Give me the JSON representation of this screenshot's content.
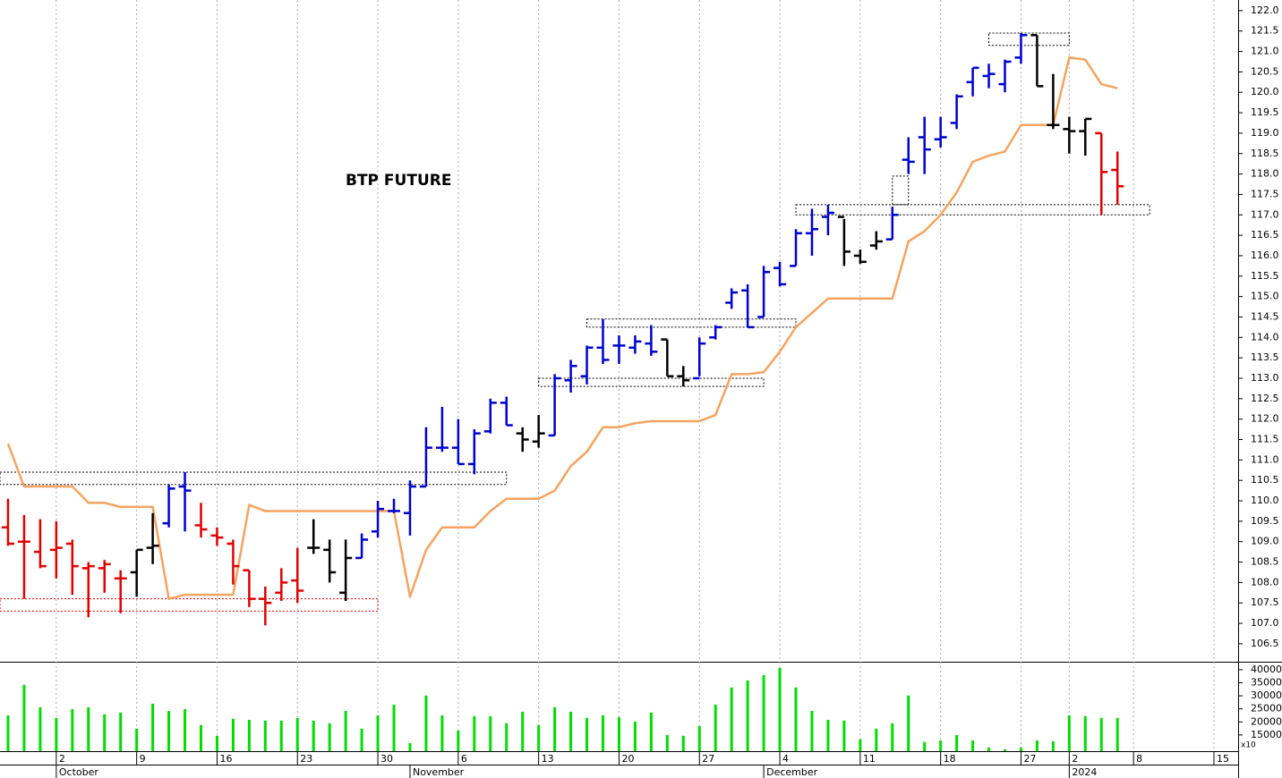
{
  "chart_data": {
    "type": "ohlc",
    "title": "BTP FUTURE",
    "categories": [
      null,
      null,
      null,
      "2",
      null,
      null,
      null,
      null,
      "9",
      null,
      null,
      null,
      null,
      "16",
      null,
      null,
      null,
      null,
      "23",
      null,
      null,
      null,
      null,
      "30",
      null,
      null,
      null,
      null,
      "6",
      null,
      null,
      null,
      null,
      "13",
      null,
      null,
      null,
      null,
      "20",
      null,
      null,
      null,
      null,
      "27",
      null,
      null,
      null,
      null,
      "4",
      null,
      null,
      null,
      null,
      "11",
      null,
      null,
      null,
      null,
      "18",
      null,
      null,
      null,
      null,
      "27",
      null,
      null,
      "2",
      null,
      null,
      null,
      "8",
      null,
      null,
      null,
      null,
      "15"
    ],
    "months": [
      null,
      null,
      null,
      "October",
      null,
      null,
      null,
      null,
      null,
      null,
      null,
      null,
      null,
      null,
      null,
      null,
      null,
      null,
      null,
      null,
      null,
      null,
      null,
      null,
      null,
      "November",
      null,
      null,
      null,
      null,
      null,
      null,
      null,
      null,
      null,
      null,
      null,
      null,
      null,
      null,
      null,
      null,
      null,
      null,
      null,
      null,
      null,
      "December",
      null,
      null,
      null,
      null,
      null,
      null,
      null,
      null,
      null,
      null,
      null,
      null,
      null,
      null,
      null,
      null,
      null,
      null,
      "2024",
      null,
      null,
      null,
      null,
      null,
      null,
      null,
      null,
      null
    ],
    "open": [
      109.35,
      109.0,
      108.75,
      108.8,
      108.95,
      108.35,
      108.35,
      108.1,
      108.25,
      108.85,
      109.45,
      110.35,
      109.4,
      109.15,
      108.95,
      108.3,
      107.6,
      107.75,
      108.05,
      108.85,
      108.8,
      107.75,
      108.6,
      109.25,
      109.75,
      109.7,
      110.35,
      111.3,
      111.3,
      110.9,
      111.7,
      112.4,
      111.65,
      111.45,
      111.6,
      112.95,
      113.05,
      113.75,
      113.8,
      113.75,
      113.85,
      113.95,
      113.05,
      113.0,
      114.0,
      114.85,
      115.15,
      114.5,
      115.7,
      115.75,
      116.55,
      116.95,
      116.95,
      116.0,
      116.25,
      116.4,
      118.35,
      118.9,
      118.85,
      119.25,
      120.25,
      120.4,
      120.2,
      120.85,
      121.4,
      119.2,
      119.1,
      119.05,
      119.0,
      118.1,
      null,
      null,
      null,
      null,
      null,
      null
    ],
    "high": [
      110.05,
      109.65,
      109.55,
      109.5,
      109.05,
      108.5,
      108.55,
      108.3,
      108.8,
      109.7,
      110.4,
      110.7,
      109.95,
      109.35,
      109.05,
      108.3,
      107.9,
      108.35,
      108.85,
      109.55,
      109.05,
      109.05,
      109.2,
      110.0,
      110.05,
      110.5,
      111.8,
      112.3,
      112.0,
      111.75,
      112.5,
      112.55,
      111.8,
      112.1,
      113.1,
      113.45,
      113.8,
      114.45,
      114.05,
      114.05,
      114.3,
      113.95,
      113.3,
      114.0,
      114.3,
      115.2,
      115.3,
      115.75,
      115.85,
      116.65,
      117.15,
      117.25,
      116.9,
      116.15,
      116.6,
      117.2,
      118.9,
      119.4,
      119.4,
      119.95,
      120.6,
      120.7,
      120.8,
      121.45,
      121.4,
      120.45,
      119.4,
      119.35,
      119.0,
      118.55,
      null,
      null,
      null,
      null,
      null,
      null
    ],
    "low": [
      108.9,
      107.6,
      108.35,
      108.1,
      107.7,
      107.15,
      107.75,
      107.25,
      107.65,
      108.45,
      109.35,
      109.25,
      109.1,
      108.9,
      107.95,
      107.4,
      106.95,
      107.55,
      107.5,
      108.7,
      108.0,
      107.55,
      108.6,
      109.1,
      109.7,
      109.15,
      110.35,
      111.2,
      110.9,
      110.65,
      111.65,
      111.85,
      111.2,
      111.3,
      111.6,
      112.65,
      112.85,
      113.35,
      113.35,
      113.6,
      113.55,
      113.05,
      112.8,
      113.05,
      113.95,
      114.7,
      114.25,
      114.5,
      115.25,
      115.75,
      116.0,
      116.5,
      115.75,
      115.8,
      116.15,
      116.4,
      118.0,
      118.0,
      118.65,
      119.1,
      119.9,
      120.1,
      120.0,
      120.7,
      120.15,
      119.1,
      118.5,
      118.45,
      117.0,
      117.25,
      null,
      null,
      null,
      null,
      null,
      null
    ],
    "close": [
      108.95,
      109.0,
      108.4,
      108.85,
      108.4,
      108.4,
      108.45,
      108.1,
      108.8,
      108.9,
      110.3,
      110.25,
      109.3,
      109.1,
      108.4,
      107.6,
      107.5,
      108.0,
      107.8,
      108.85,
      108.25,
      108.6,
      109.05,
      109.8,
      109.75,
      110.35,
      111.3,
      111.3,
      110.9,
      111.65,
      112.4,
      111.85,
      111.5,
      111.65,
      113.0,
      113.3,
      113.75,
      113.45,
      113.8,
      113.9,
      113.65,
      113.05,
      112.95,
      113.85,
      114.25,
      115.1,
      114.25,
      115.6,
      115.3,
      116.55,
      116.65,
      117.05,
      116.1,
      115.85,
      116.35,
      117.0,
      118.3,
      118.6,
      118.9,
      119.9,
      120.6,
      120.45,
      120.75,
      121.4,
      120.15,
      119.2,
      119.05,
      119.35,
      118.05,
      117.7,
      null,
      null,
      null,
      null,
      null,
      null
    ],
    "bar_colors": [
      "#e00000",
      "#e00000",
      "#e00000",
      "#e00000",
      "#e00000",
      "#e00000",
      "#e00000",
      "#e00000",
      "#000000",
      "#000000",
      "#0000cc",
      "#0000cc",
      "#e00000",
      "#e00000",
      "#e00000",
      "#e00000",
      "#e00000",
      "#e00000",
      "#e00000",
      "#000000",
      "#000000",
      "#000000",
      "#0000cc",
      "#0000cc",
      "#0000cc",
      "#0000cc",
      "#0000cc",
      "#0000cc",
      "#0000cc",
      "#0000cc",
      "#0000cc",
      "#0000cc",
      "#000000",
      "#000000",
      "#0000cc",
      "#0000cc",
      "#0000cc",
      "#0000cc",
      "#0000cc",
      "#0000cc",
      "#0000cc",
      "#000000",
      "#000000",
      "#0000cc",
      "#0000cc",
      "#0000cc",
      "#0000cc",
      "#0000cc",
      "#0000cc",
      "#0000cc",
      "#0000cc",
      "#0000cc",
      "#000000",
      "#000000",
      "#000000",
      "#0000cc",
      "#0000cc",
      "#0000cc",
      "#0000cc",
      "#0000cc",
      "#0000cc",
      "#0000cc",
      "#0000cc",
      "#0000cc",
      "#000000",
      "#000000",
      "#000000",
      "#000000",
      "#e00000",
      "#e00000",
      null,
      null,
      null,
      null,
      null,
      null
    ],
    "line": {
      "color": "#f4a460",
      "values": [
        111.4,
        110.35,
        110.35,
        110.35,
        110.35,
        109.95,
        109.95,
        109.85,
        109.85,
        109.85,
        107.6,
        107.7,
        107.7,
        107.7,
        107.7,
        109.9,
        109.75,
        109.75,
        109.75,
        109.75,
        109.75,
        109.75,
        109.75,
        109.75,
        109.75,
        107.65,
        108.8,
        109.35,
        109.35,
        109.35,
        109.75,
        110.05,
        110.05,
        110.05,
        110.25,
        110.85,
        111.2,
        111.8,
        111.8,
        111.9,
        111.95,
        111.95,
        111.95,
        111.95,
        112.1,
        113.1,
        113.1,
        113.15,
        113.65,
        114.25,
        114.6,
        114.95,
        114.95,
        114.95,
        114.95,
        114.95,
        116.35,
        116.6,
        117.0,
        117.55,
        118.3,
        118.45,
        118.55,
        119.2,
        119.2,
        119.2,
        120.85,
        120.8,
        120.2,
        120.1,
        null,
        null,
        null,
        null,
        null,
        null
      ]
    },
    "zones": [
      {
        "x": [
          -0.5,
          31
        ],
        "y": [
          110.4,
          110.7
        ],
        "color": "#000000"
      },
      {
        "x": [
          -0.5,
          23
        ],
        "y": [
          107.3,
          107.6
        ],
        "color": "#e00000"
      },
      {
        "x": [
          33,
          47
        ],
        "y": [
          112.8,
          113.0
        ],
        "color": "#000000"
      },
      {
        "x": [
          36,
          49
        ],
        "y": [
          114.25,
          114.45
        ],
        "color": "#000000"
      },
      {
        "x": [
          49,
          71
        ],
        "y": [
          117.0,
          117.25
        ],
        "color": "#000000"
      },
      {
        "x": [
          55,
          56
        ],
        "y": [
          117.25,
          117.95
        ],
        "color": "#000000"
      },
      {
        "x": [
          61,
          66
        ],
        "y": [
          121.15,
          121.45
        ],
        "color": "#000000"
      }
    ],
    "ylim": [
      106.06,
      122.26
    ],
    "yticks": [
      {
        "value": 106.5,
        "label": "106.5"
      },
      {
        "value": 107,
        "label": "107.0"
      },
      107.5,
      {
        "value": 108,
        "label": "108.0"
      },
      108.5,
      {
        "value": 109,
        "label": "109.0"
      },
      109.5,
      {
        "value": 110,
        "label": "110.0"
      },
      110.5,
      {
        "value": 111,
        "label": "111.0"
      },
      111.5,
      {
        "value": 112,
        "label": "112.0"
      },
      112.5,
      {
        "value": 113,
        "label": "113.0"
      },
      113.5,
      {
        "value": 114,
        "label": "114.0"
      },
      114.5,
      {
        "value": 115,
        "label": "115.0"
      },
      115.5,
      {
        "value": 116,
        "label": "116.0"
      },
      116.5,
      {
        "value": 117,
        "label": "117.0"
      },
      117.5,
      {
        "value": 118,
        "label": "118.0"
      },
      118.5,
      {
        "value": 119,
        "label": "119.0"
      },
      119.5,
      {
        "value": 120,
        "label": "120.0"
      },
      120.5,
      {
        "value": 121,
        "label": "121.0"
      },
      121.5,
      {
        "value": 122,
        "label": "122.0"
      }
    ],
    "grid": true,
    "volume": {
      "color": "#00dd00",
      "unit_label": "x10",
      "ylim": [
        8800,
        42700
      ],
      "yticks": [
        15000,
        20000,
        25000,
        30000,
        35000,
        40000
      ],
      "values": [
        22500,
        34200,
        25600,
        21500,
        24900,
        25600,
        22900,
        23600,
        17400,
        27000,
        24200,
        24900,
        18800,
        14700,
        21200,
        20800,
        20500,
        20500,
        21500,
        20500,
        19500,
        24200,
        17400,
        22500,
        26600,
        11900,
        30100,
        22500,
        16700,
        22200,
        22200,
        19500,
        23900,
        18800,
        25600,
        23900,
        21500,
        22500,
        21800,
        20100,
        23600,
        15000,
        14700,
        18400,
        26600,
        33200,
        35900,
        37900,
        40700,
        33200,
        24200,
        20800,
        20500,
        13300,
        17400,
        19500,
        30100,
        12300,
        12900,
        15000,
        12900,
        10200,
        9500,
        10200,
        12900,
        12600,
        22500,
        22200,
        21500,
        21500,
        null,
        null,
        null,
        null,
        null,
        null
      ]
    }
  }
}
